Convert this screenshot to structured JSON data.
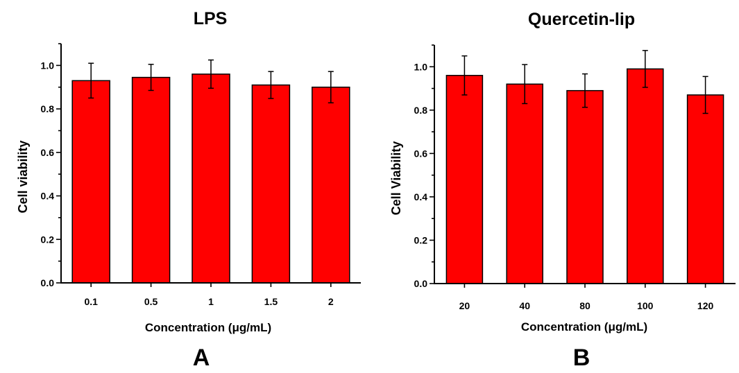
{
  "chart_data": [
    {
      "type": "bar",
      "title": "LPS",
      "panel_label": "A",
      "xlabel": "Concentration (μg/mL)",
      "ylabel": "Cell viability",
      "categories": [
        "0.1",
        "0.5",
        "1",
        "1.5",
        "2"
      ],
      "values": [
        0.93,
        0.945,
        0.96,
        0.91,
        0.9
      ],
      "errors": [
        0.08,
        0.06,
        0.065,
        0.062,
        0.072
      ],
      "ylim": [
        0,
        1.1
      ],
      "yticks": [
        "0.0",
        "0.2",
        "0.4",
        "0.6",
        "0.8",
        "1.0"
      ],
      "bar_color": "#ff0000",
      "grid": false
    },
    {
      "type": "bar",
      "title": "Quercetin-lip",
      "panel_label": "B",
      "xlabel": "Concentration (μg/mL)",
      "ylabel": "Cell Viability",
      "categories": [
        "20",
        "40",
        "80",
        "100",
        "120"
      ],
      "values": [
        0.96,
        0.92,
        0.89,
        0.99,
        0.87
      ],
      "errors": [
        0.09,
        0.09,
        0.077,
        0.085,
        0.085
      ],
      "ylim": [
        0,
        1.1
      ],
      "yticks": [
        "0.0",
        "0.2",
        "0.4",
        "0.6",
        "0.8",
        "1.0"
      ],
      "bar_color": "#ff0000",
      "grid": false
    }
  ]
}
